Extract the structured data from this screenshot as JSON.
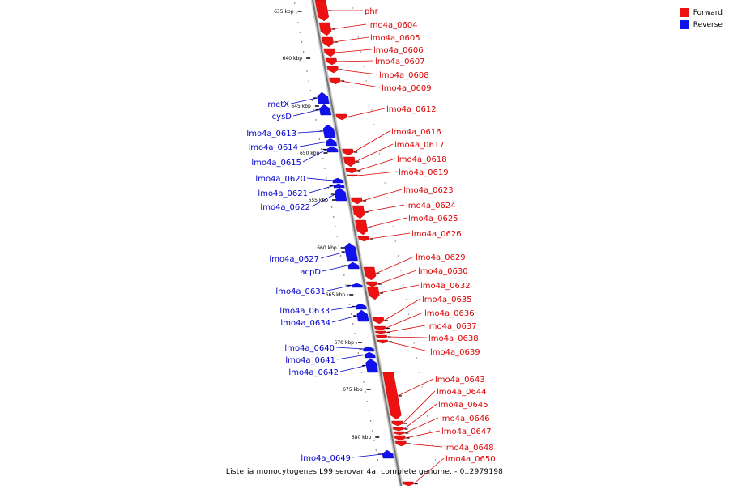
{
  "colors": {
    "forward": "#ee1111",
    "reverse": "#1111ee",
    "axis": "#8a8a8a",
    "label_forward": "#dd0000",
    "label_reverse": "#0000cc"
  },
  "legend": [
    {
      "label": "Forward",
      "color": "#ee1111"
    },
    {
      "label": "Reverse",
      "color": "#1111ee"
    }
  ],
  "caption": "Listeria monocytogenes L99 serovar 4a, complete genome. - 0..2979198",
  "scale": [
    "635 kbp",
    "640 kbp",
    "645 kbp",
    "650 kbp",
    "655 kbp",
    "660 kbp",
    "665 kbp",
    "670 kbp",
    "675 kbp",
    "680 kbp"
  ],
  "forward_genes": [
    "phr",
    "lmo4a_0604",
    "lmo4a_0605",
    "lmo4a_0606",
    "lmo4a_0607",
    "lmo4a_0608",
    "lmo4a_0609",
    "lmo4a_0612",
    "lmo4a_0616",
    "lmo4a_0617",
    "lmo4a_0618",
    "lmo4a_0619",
    "lmo4a_0623",
    "lmo4a_0624",
    "lmo4a_0625",
    "lmo4a_0626",
    "lmo4a_0629",
    "lmo4a_0630",
    "lmo4a_0632",
    "lmo4a_0635",
    "lmo4a_0636",
    "lmo4a_0637",
    "lmo4a_0638",
    "lmo4a_0639",
    "lmo4a_0643",
    "lmo4a_0644",
    "lmo4a_0645",
    "lmo4a_0646",
    "lmo4a_0647",
    "lmo4a_0648",
    "lmo4a_0650"
  ],
  "reverse_genes": [
    "metX",
    "cysD",
    "lmo4a_0613",
    "lmo4a_0614",
    "lmo4a_0615",
    "lmo4a_0620",
    "lmo4a_0621",
    "lmo4a_0622",
    "lmo4a_0627",
    "acpD",
    "lmo4a_0631",
    "lmo4a_0633",
    "lmo4a_0634",
    "lmo4a_0640",
    "lmo4a_0641",
    "lmo4a_0642",
    "lmo4a_0649"
  ]
}
